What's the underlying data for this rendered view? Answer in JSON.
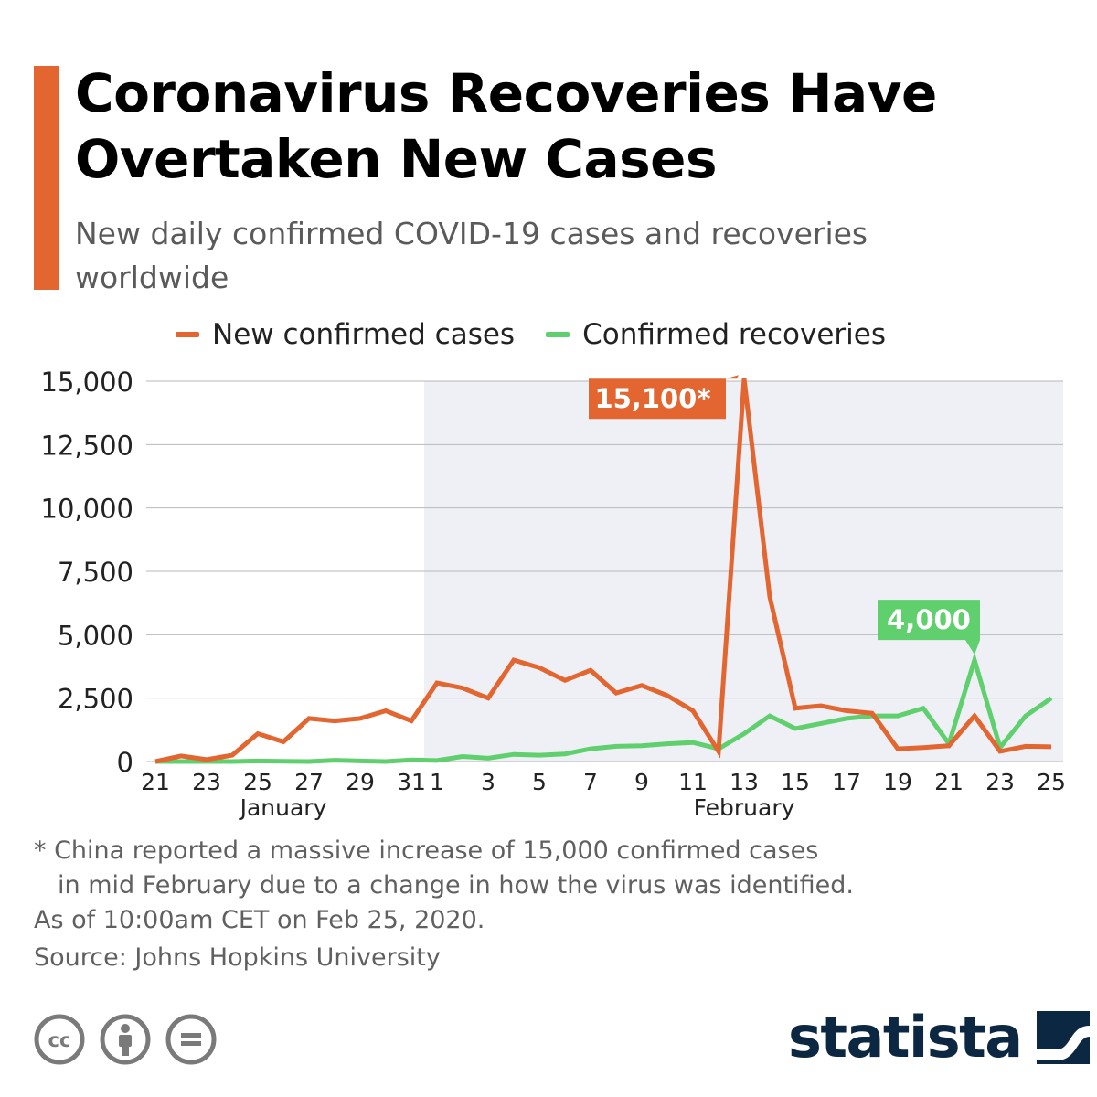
{
  "title": "Coronavirus Recoveries Have Overtaken New Cases",
  "subtitle": "New daily confirmed COVID-19 cases and recoveries worldwide",
  "footnote": {
    "line1": "* China reported a massive increase of 15,000 confirmed cases",
    "line2": "in mid February due to a change in how the virus was identified.",
    "line3": "As of 10:00am CET on Feb 25, 2020."
  },
  "source": "Source: Johns Hopkins University",
  "brand": "statista",
  "colors": {
    "accent": "#e3652f",
    "cases": "#e3652f",
    "recoveries": "#5fd06d",
    "shade": "#eef0f6",
    "brand": "#0b2742"
  },
  "license_icons": [
    "creative-commons-icon",
    "attribution-icon",
    "no-derivatives-icon"
  ],
  "chart_data": {
    "type": "line",
    "x": [
      "Jan 21",
      "Jan 22",
      "Jan 23",
      "Jan 24",
      "Jan 25",
      "Jan 26",
      "Jan 27",
      "Jan 28",
      "Jan 29",
      "Jan 30",
      "Jan 31",
      "Feb 1",
      "Feb 2",
      "Feb 3",
      "Feb 4",
      "Feb 5",
      "Feb 6",
      "Feb 7",
      "Feb 8",
      "Feb 9",
      "Feb 10",
      "Feb 11",
      "Feb 12",
      "Feb 13",
      "Feb 14",
      "Feb 15",
      "Feb 16",
      "Feb 17",
      "Feb 18",
      "Feb 19",
      "Feb 20",
      "Feb 21",
      "Feb 22",
      "Feb 23",
      "Feb 24",
      "Feb 25"
    ],
    "x_tick_labels": [
      "21",
      "",
      "23",
      "",
      "25",
      "",
      "27",
      "",
      "29",
      "",
      "31",
      "1",
      "",
      "3",
      "",
      "5",
      "",
      "7",
      "",
      "9",
      "",
      "11",
      "",
      "13",
      "",
      "15",
      "",
      "17",
      "",
      "19",
      "",
      "21",
      "",
      "23",
      "",
      "25"
    ],
    "x_group_labels": [
      {
        "label": "January",
        "from": 0,
        "to": 10
      },
      {
        "label": "February",
        "from": 11,
        "to": 35
      }
    ],
    "shaded_range": [
      11,
      35
    ],
    "series": [
      {
        "name": "New confirmed cases",
        "values": [
          0,
          220,
          80,
          250,
          1100,
          780,
          1700,
          1600,
          1700,
          2000,
          1600,
          3100,
          2900,
          2500,
          4000,
          3700,
          3200,
          3600,
          2700,
          3000,
          2600,
          2000,
          400,
          15100,
          6500,
          2100,
          2200,
          2000,
          1900,
          500,
          550,
          620,
          1800,
          400,
          600,
          580
        ]
      },
      {
        "name": "Confirmed recoveries",
        "values": [
          0,
          0,
          0,
          0,
          20,
          10,
          0,
          50,
          20,
          0,
          60,
          40,
          200,
          130,
          280,
          250,
          300,
          500,
          600,
          620,
          700,
          750,
          500,
          1100,
          1800,
          1300,
          1500,
          1700,
          1800,
          1800,
          2100,
          700,
          4000,
          550,
          1800,
          2500
        ]
      }
    ],
    "annotations": [
      {
        "series": 0,
        "index": 23,
        "label": "15,100*"
      },
      {
        "series": 1,
        "index": 32,
        "label": "4,000"
      }
    ],
    "y_ticks": [
      0,
      2500,
      5000,
      7500,
      10000,
      12500,
      15000
    ],
    "y_tick_labels": [
      "0",
      "2,500",
      "5,000",
      "7,500",
      "10,000",
      "12,500",
      "15,000"
    ],
    "ylim": [
      0,
      15000
    ],
    "xlabel": "",
    "ylabel": "",
    "grid": true,
    "legend": "top"
  }
}
